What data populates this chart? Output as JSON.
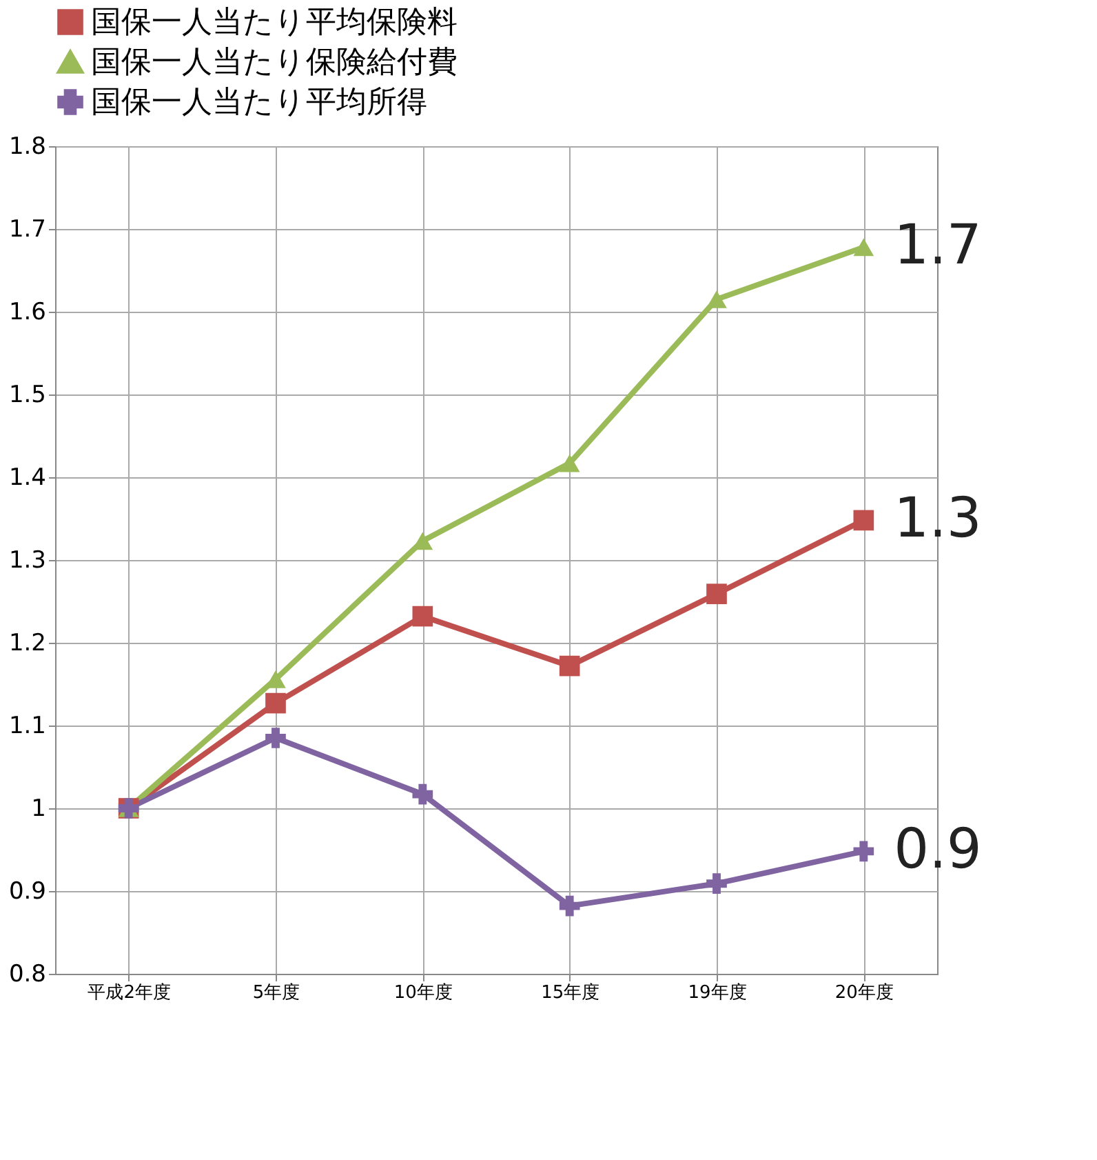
{
  "chart_data": {
    "type": "line",
    "categories": [
      "平成2年度",
      "5年度",
      "10年度",
      "15年度",
      "19年度",
      "20年度"
    ],
    "series": [
      {
        "name": "国保一人当たり平均保険料",
        "color": "#c0504d",
        "marker": "square",
        "values": [
          1.0,
          1.127,
          1.232,
          1.172,
          1.259,
          1.348
        ]
      },
      {
        "name": "国保一人当たり保険給付費",
        "color": "#9bbb59",
        "marker": "triangle",
        "values": [
          1.0,
          1.156,
          1.323,
          1.417,
          1.615,
          1.678
        ]
      },
      {
        "name": "国保一人当たり平均所得",
        "color": "#8064a2",
        "marker": "cross",
        "values": [
          1.0,
          1.085,
          1.017,
          0.882,
          0.909,
          0.948
        ]
      }
    ],
    "ylim": [
      0.8,
      1.8
    ],
    "yticks": [
      0.8,
      0.9,
      1,
      1.1,
      1.2,
      1.3,
      1.4,
      1.5,
      1.6,
      1.7,
      1.8
    ],
    "grid": true,
    "legend": "top",
    "annotations": [
      {
        "text": "1.7",
        "x": "20年度",
        "y": 1.678
      },
      {
        "text": "1.3",
        "x": "20年度",
        "y": 1.348
      },
      {
        "text": "0.9",
        "x": "20年度",
        "y": 0.948
      }
    ]
  }
}
